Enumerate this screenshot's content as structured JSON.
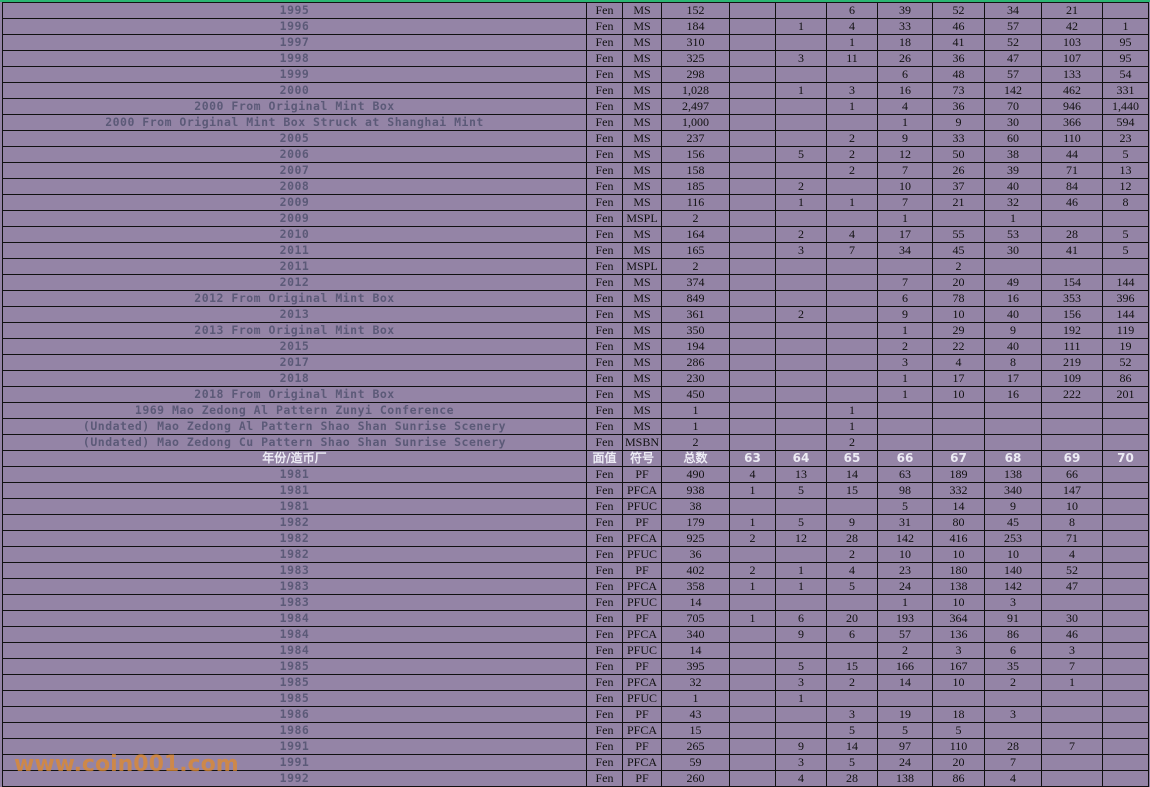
{
  "colors": {
    "background": "#9484a6",
    "name_text": "#5c5a78",
    "header_text": "#ecebf4",
    "grid": "#111111",
    "top_border": "#2bb673",
    "watermark": "#e08a2c"
  },
  "header": [
    "年份/造币厂",
    "面值",
    "符号",
    "总数",
    "63",
    "64",
    "65",
    "66",
    "67",
    "68",
    "69",
    "70"
  ],
  "rows_top": [
    [
      "1995",
      "Fen",
      "MS",
      "152",
      "",
      "",
      "6",
      "39",
      "52",
      "34",
      "21",
      ""
    ],
    [
      "1996",
      "Fen",
      "MS",
      "184",
      "",
      "1",
      "4",
      "33",
      "46",
      "57",
      "42",
      "1"
    ],
    [
      "1997",
      "Fen",
      "MS",
      "310",
      "",
      "",
      "1",
      "18",
      "41",
      "52",
      "103",
      "95"
    ],
    [
      "1998",
      "Fen",
      "MS",
      "325",
      "",
      "3",
      "11",
      "26",
      "36",
      "47",
      "107",
      "95"
    ],
    [
      "1999",
      "Fen",
      "MS",
      "298",
      "",
      "",
      "",
      "6",
      "48",
      "57",
      "133",
      "54"
    ],
    [
      "2000",
      "Fen",
      "MS",
      "1,028",
      "",
      "1",
      "3",
      "16",
      "73",
      "142",
      "462",
      "331"
    ],
    [
      "2000 From Original Mint Box",
      "Fen",
      "MS",
      "2,497",
      "",
      "",
      "1",
      "4",
      "36",
      "70",
      "946",
      "1,440"
    ],
    [
      "2000 From Original Mint Box Struck at Shanghai Mint",
      "Fen",
      "MS",
      "1,000",
      "",
      "",
      "",
      "1",
      "9",
      "30",
      "366",
      "594"
    ],
    [
      "2005",
      "Fen",
      "MS",
      "237",
      "",
      "",
      "2",
      "9",
      "33",
      "60",
      "110",
      "23"
    ],
    [
      "2006",
      "Fen",
      "MS",
      "156",
      "",
      "5",
      "2",
      "12",
      "50",
      "38",
      "44",
      "5"
    ],
    [
      "2007",
      "Fen",
      "MS",
      "158",
      "",
      "",
      "2",
      "7",
      "26",
      "39",
      "71",
      "13"
    ],
    [
      "2008",
      "Fen",
      "MS",
      "185",
      "",
      "2",
      "",
      "10",
      "37",
      "40",
      "84",
      "12"
    ],
    [
      "2009",
      "Fen",
      "MS",
      "116",
      "",
      "1",
      "1",
      "7",
      "21",
      "32",
      "46",
      "8"
    ],
    [
      "2009",
      "Fen",
      "MSPL",
      "2",
      "",
      "",
      "",
      "1",
      "",
      "1",
      "",
      ""
    ],
    [
      "2010",
      "Fen",
      "MS",
      "164",
      "",
      "2",
      "4",
      "17",
      "55",
      "53",
      "28",
      "5"
    ],
    [
      "2011",
      "Fen",
      "MS",
      "165",
      "",
      "3",
      "7",
      "34",
      "45",
      "30",
      "41",
      "5"
    ],
    [
      "2011",
      "Fen",
      "MSPL",
      "2",
      "",
      "",
      "",
      "",
      "2",
      "",
      "",
      ""
    ],
    [
      "2012",
      "Fen",
      "MS",
      "374",
      "",
      "",
      "",
      "7",
      "20",
      "49",
      "154",
      "144"
    ],
    [
      "2012 From Original Mint Box",
      "Fen",
      "MS",
      "849",
      "",
      "",
      "",
      "6",
      "78",
      "16",
      "353",
      "396"
    ],
    [
      "2013",
      "Fen",
      "MS",
      "361",
      "",
      "2",
      "",
      "9",
      "10",
      "40",
      "156",
      "144"
    ],
    [
      "2013 From Original Mint Box",
      "Fen",
      "MS",
      "350",
      "",
      "",
      "",
      "1",
      "29",
      "9",
      "192",
      "119"
    ],
    [
      "2015",
      "Fen",
      "MS",
      "194",
      "",
      "",
      "",
      "2",
      "22",
      "40",
      "111",
      "19"
    ],
    [
      "2017",
      "Fen",
      "MS",
      "286",
      "",
      "",
      "",
      "3",
      "4",
      "8",
      "219",
      "52"
    ],
    [
      "2018",
      "Fen",
      "MS",
      "230",
      "",
      "",
      "",
      "1",
      "17",
      "17",
      "109",
      "86"
    ],
    [
      "2018 From Original Mint Box",
      "Fen",
      "MS",
      "450",
      "",
      "",
      "",
      "1",
      "10",
      "16",
      "222",
      "201"
    ],
    [
      "1969 Mao Zedong Al Pattern Zunyi Conference",
      "Fen",
      "MS",
      "1",
      "",
      "",
      "1",
      "",
      "",
      "",
      "",
      ""
    ],
    [
      "(Undated) Mao Zedong Al Pattern Shao Shan Sunrise Scenery",
      "Fen",
      "MS",
      "1",
      "",
      "",
      "1",
      "",
      "",
      "",
      "",
      ""
    ],
    [
      "(Undated) Mao Zedong Cu Pattern Shao Shan Sunrise Scenery",
      "Fen",
      "MSBN",
      "2",
      "",
      "",
      "2",
      "",
      "",
      "",
      "",
      ""
    ]
  ],
  "rows_bottom": [
    [
      "1981",
      "Fen",
      "PF",
      "490",
      "4",
      "13",
      "14",
      "63",
      "189",
      "138",
      "66",
      ""
    ],
    [
      "1981",
      "Fen",
      "PFCA",
      "938",
      "1",
      "5",
      "15",
      "98",
      "332",
      "340",
      "147",
      ""
    ],
    [
      "1981",
      "Fen",
      "PFUC",
      "38",
      "",
      "",
      "",
      "5",
      "14",
      "9",
      "10",
      ""
    ],
    [
      "1982",
      "Fen",
      "PF",
      "179",
      "1",
      "5",
      "9",
      "31",
      "80",
      "45",
      "8",
      ""
    ],
    [
      "1982",
      "Fen",
      "PFCA",
      "925",
      "2",
      "12",
      "28",
      "142",
      "416",
      "253",
      "71",
      ""
    ],
    [
      "1982",
      "Fen",
      "PFUC",
      "36",
      "",
      "",
      "2",
      "10",
      "10",
      "10",
      "4",
      ""
    ],
    [
      "1983",
      "Fen",
      "PF",
      "402",
      "2",
      "1",
      "4",
      "23",
      "180",
      "140",
      "52",
      ""
    ],
    [
      "1983",
      "Fen",
      "PFCA",
      "358",
      "1",
      "1",
      "5",
      "24",
      "138",
      "142",
      "47",
      ""
    ],
    [
      "1983",
      "Fen",
      "PFUC",
      "14",
      "",
      "",
      "",
      "1",
      "10",
      "3",
      "",
      ""
    ],
    [
      "1984",
      "Fen",
      "PF",
      "705",
      "1",
      "6",
      "20",
      "193",
      "364",
      "91",
      "30",
      ""
    ],
    [
      "1984",
      "Fen",
      "PFCA",
      "340",
      "",
      "9",
      "6",
      "57",
      "136",
      "86",
      "46",
      ""
    ],
    [
      "1984",
      "Fen",
      "PFUC",
      "14",
      "",
      "",
      "",
      "2",
      "3",
      "6",
      "3",
      ""
    ],
    [
      "1985",
      "Fen",
      "PF",
      "395",
      "",
      "5",
      "15",
      "166",
      "167",
      "35",
      "7",
      ""
    ],
    [
      "1985",
      "Fen",
      "PFCA",
      "32",
      "",
      "3",
      "2",
      "14",
      "10",
      "2",
      "1",
      ""
    ],
    [
      "1985",
      "Fen",
      "PFUC",
      "1",
      "",
      "1",
      "",
      "",
      "",
      "",
      "",
      ""
    ],
    [
      "1986",
      "Fen",
      "PF",
      "43",
      "",
      "",
      "3",
      "19",
      "18",
      "3",
      "",
      ""
    ],
    [
      "1986",
      "Fen",
      "PFCA",
      "15",
      "",
      "",
      "5",
      "5",
      "5",
      "",
      "",
      ""
    ],
    [
      "1991",
      "Fen",
      "PF",
      "265",
      "",
      "9",
      "14",
      "97",
      "110",
      "28",
      "7",
      ""
    ],
    [
      "1991",
      "Fen",
      "PFCA",
      "59",
      "",
      "3",
      "5",
      "24",
      "20",
      "7",
      "",
      ""
    ],
    [
      "1992",
      "Fen",
      "PF",
      "260",
      "",
      "4",
      "28",
      "138",
      "86",
      "4",
      "",
      ""
    ]
  ],
  "watermark": "www.coin001.com"
}
